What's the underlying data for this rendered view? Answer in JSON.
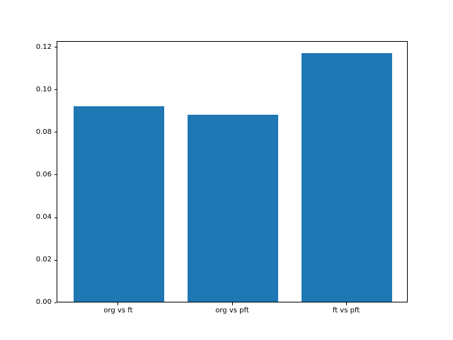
{
  "chart_data": {
    "type": "bar",
    "title": "",
    "xlabel": "",
    "ylabel": "",
    "categories": [
      "org vs ft",
      "org vs pft",
      "ft vs pft"
    ],
    "values": [
      0.092,
      0.088,
      0.117
    ],
    "bar_color": "#1f77b4",
    "bar_width": 0.8,
    "xlim": [
      -0.54,
      2.54
    ],
    "ylim": [
      0,
      0.123
    ],
    "yticks": [
      0.0,
      0.02,
      0.04,
      0.06,
      0.08,
      0.1,
      0.12
    ],
    "ytick_labels": [
      "0.00",
      "0.02",
      "0.04",
      "0.06",
      "0.08",
      "0.10",
      "0.12"
    ],
    "grid": false,
    "legend": null,
    "spine_color": "#000000",
    "background_color": "#ffffff"
  }
}
